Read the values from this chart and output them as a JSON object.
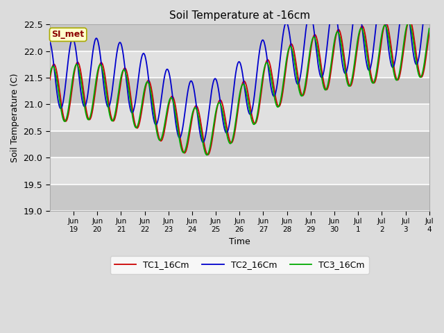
{
  "title": "Soil Temperature at -16cm",
  "xlabel": "Time",
  "ylabel": "Soil Temperature (C)",
  "ylim": [
    19.0,
    22.5
  ],
  "yticks": [
    19.0,
    19.5,
    20.0,
    20.5,
    21.0,
    21.5,
    22.0,
    22.5
  ],
  "bg_color": "#dcdcdc",
  "plot_bg_color": "#dcdcdc",
  "grid_color": "white",
  "line_colors": {
    "TC1": "#cc0000",
    "TC2": "#0000cc",
    "TC3": "#00aa00"
  },
  "line_width": 1.3,
  "annotation_text": "SI_met",
  "annotation_bg": "#ffffcc",
  "annotation_border": "#aaaa00",
  "annotation_text_color": "#8b0000",
  "x_tick_labels": [
    "Jun\n19",
    "Jun\n20",
    "Jun\n21",
    "Jun\n22",
    "Jun\n23",
    "Jun\n24",
    "Jun\n25",
    "Jun\n26",
    "Jun\n27",
    "Jun\n28",
    "Jun\n29",
    "Jun\n30",
    "Jul\n1",
    "Jul\n2",
    "Jul\n3",
    "Jul\n4"
  ],
  "num_points": 960,
  "num_days": 16
}
